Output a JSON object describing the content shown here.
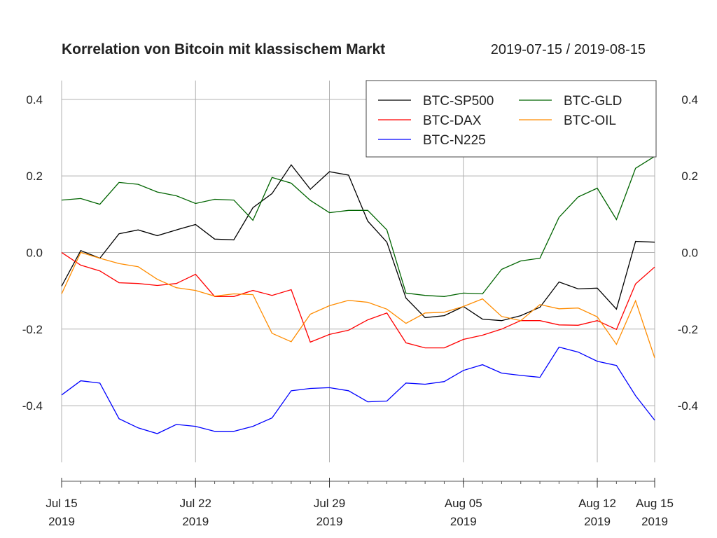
{
  "chart_data": {
    "type": "line",
    "title": "Korrelation von Bitcoin mit klassischem Markt",
    "date_range": "2019-07-15 / 2019-08-15",
    "xlabel": "",
    "ylabel": "",
    "ylim": [
      -0.548,
      0.449
    ],
    "y_ticks": [
      "0.4",
      "0.2",
      "0.0",
      "-0.2",
      "-0.4"
    ],
    "y_tick_values": [
      0.4,
      0.2,
      0.0,
      -0.2,
      -0.4
    ],
    "x_ticks": [
      {
        "date": "2019-07-15",
        "line1": "Jul 15",
        "line2": "2019"
      },
      {
        "date": "2019-07-22",
        "line1": "Jul 22",
        "line2": "2019"
      },
      {
        "date": "2019-07-29",
        "line1": "Jul 29",
        "line2": "2019"
      },
      {
        "date": "2019-08-05",
        "line1": "Aug 05",
        "line2": "2019"
      },
      {
        "date": "2019-08-12",
        "line1": "Aug 12",
        "line2": "2019"
      },
      {
        "date": "2019-08-15",
        "line1": "Aug 15",
        "line2": "2019"
      }
    ],
    "grid": true,
    "legend_position": "top-right",
    "x": [
      "2019-07-15",
      "2019-07-16",
      "2019-07-17",
      "2019-07-18",
      "2019-07-19",
      "2019-07-20",
      "2019-07-21",
      "2019-07-22",
      "2019-07-23",
      "2019-07-24",
      "2019-07-25",
      "2019-07-26",
      "2019-07-27",
      "2019-07-28",
      "2019-07-29",
      "2019-07-30",
      "2019-07-31",
      "2019-08-01",
      "2019-08-02",
      "2019-08-03",
      "2019-08-04",
      "2019-08-05",
      "2019-08-06",
      "2019-08-07",
      "2019-08-08",
      "2019-08-09",
      "2019-08-10",
      "2019-08-11",
      "2019-08-12",
      "2019-08-13",
      "2019-08-14",
      "2019-08-15"
    ],
    "series": [
      {
        "name": "BTC-SP500",
        "color": "#000000",
        "values": [
          -0.088,
          0.005,
          -0.015,
          0.049,
          0.059,
          0.044,
          0.059,
          0.073,
          0.035,
          0.033,
          0.117,
          0.154,
          0.229,
          0.165,
          0.211,
          0.202,
          0.082,
          0.027,
          -0.119,
          -0.17,
          -0.165,
          -0.141,
          -0.174,
          -0.178,
          -0.165,
          -0.143,
          -0.077,
          -0.095,
          -0.093,
          -0.148,
          0.029,
          0.027
        ]
      },
      {
        "name": "BTC-DAX",
        "color": "#ff0000",
        "values": [
          0,
          -0.033,
          -0.048,
          -0.079,
          -0.081,
          -0.086,
          -0.081,
          -0.057,
          -0.115,
          -0.115,
          -0.099,
          -0.112,
          -0.097,
          -0.234,
          -0.214,
          -0.203,
          -0.176,
          -0.158,
          -0.236,
          -0.249,
          -0.249,
          -0.227,
          -0.216,
          -0.2,
          -0.178,
          -0.178,
          -0.189,
          -0.19,
          -0.178,
          -0.201,
          -0.082,
          -0.038
        ]
      },
      {
        "name": "BTC-N225",
        "color": "#0000ff",
        "values": [
          -0.372,
          -0.335,
          -0.341,
          -0.434,
          -0.458,
          -0.473,
          -0.449,
          -0.454,
          -0.467,
          -0.467,
          -0.454,
          -0.432,
          -0.361,
          -0.355,
          -0.353,
          -0.361,
          -0.39,
          -0.388,
          -0.341,
          -0.344,
          -0.337,
          -0.308,
          -0.293,
          -0.315,
          -0.321,
          -0.326,
          -0.247,
          -0.26,
          -0.284,
          -0.295,
          -0.374,
          -0.438
        ]
      },
      {
        "name": "BTC-GLD",
        "color": "#006400",
        "values": [
          0.137,
          0.141,
          0.126,
          0.183,
          0.178,
          0.158,
          0.148,
          0.128,
          0.139,
          0.137,
          0.084,
          0.196,
          0.181,
          0.136,
          0.104,
          0.11,
          0.11,
          0.059,
          -0.106,
          -0.112,
          -0.115,
          -0.106,
          -0.108,
          -0.044,
          -0.022,
          -0.015,
          0.092,
          0.145,
          0.168,
          0.086,
          0.22,
          0.251
        ]
      },
      {
        "name": "BTC-OIL",
        "color": "#ff8c00",
        "values": [
          -0.108,
          0,
          -0.015,
          -0.029,
          -0.037,
          -0.07,
          -0.092,
          -0.099,
          -0.114,
          -0.108,
          -0.11,
          -0.211,
          -0.233,
          -0.161,
          -0.139,
          -0.125,
          -0.13,
          -0.148,
          -0.185,
          -0.158,
          -0.156,
          -0.141,
          -0.121,
          -0.167,
          -0.178,
          -0.136,
          -0.147,
          -0.145,
          -0.168,
          -0.24,
          -0.126,
          -0.275
        ]
      }
    ]
  }
}
